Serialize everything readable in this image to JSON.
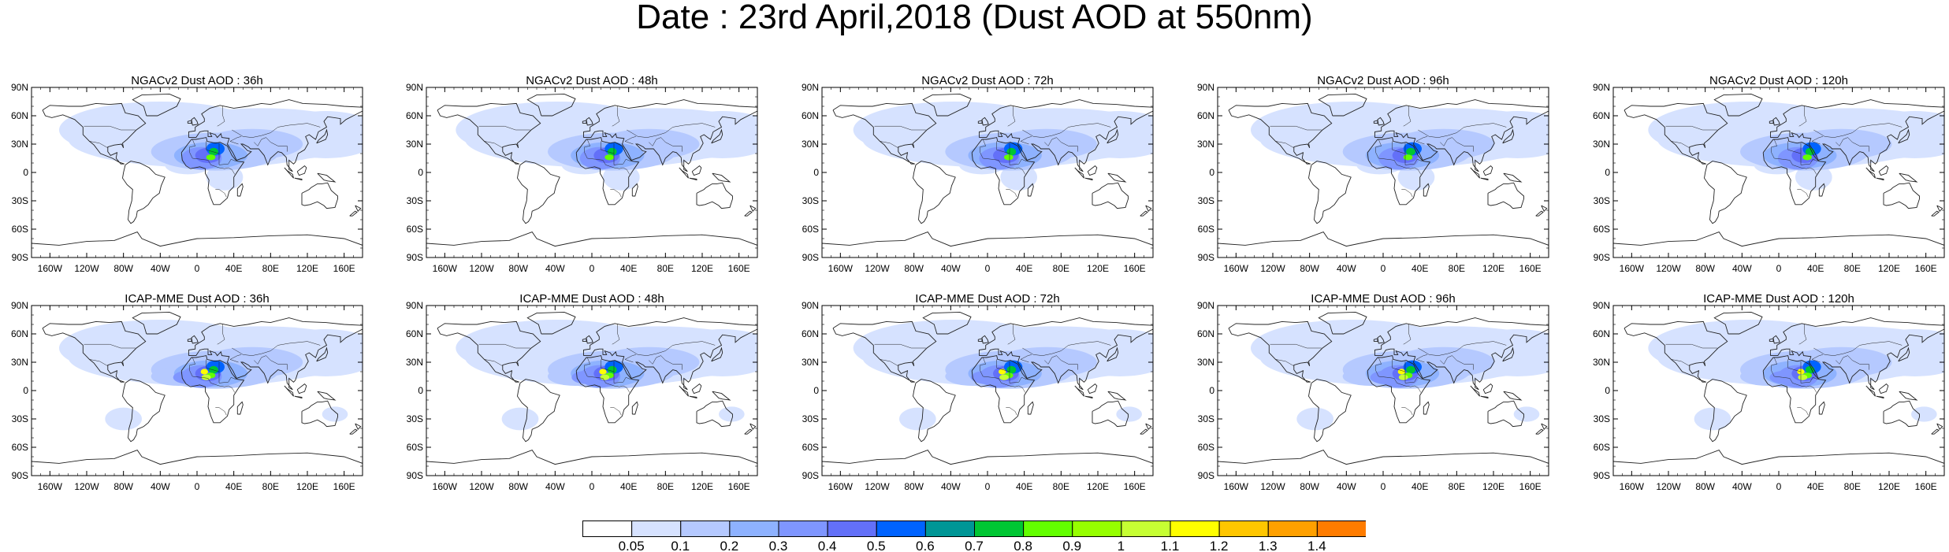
{
  "figure": {
    "title": "Date : 23rd April,2018 (Dust AOD at 550nm)"
  },
  "axes": {
    "lat_ticks": [
      "90N",
      "60N",
      "30N",
      "0",
      "30S",
      "60S",
      "90S"
    ],
    "lon_ticks": [
      "160W",
      "120W",
      "80W",
      "40W",
      "0",
      "40E",
      "80E",
      "120E",
      "160E"
    ]
  },
  "panels": [
    {
      "title": "NGACv2 Dust AOD : 36h",
      "model": "NGACv2",
      "lead": "36h"
    },
    {
      "title": "NGACv2 Dust AOD : 48h",
      "model": "NGACv2",
      "lead": "48h"
    },
    {
      "title": "NGACv2 Dust AOD : 72h",
      "model": "NGACv2",
      "lead": "72h"
    },
    {
      "title": "NGACv2 Dust AOD : 96h",
      "model": "NGACv2",
      "lead": "96h"
    },
    {
      "title": "NGACv2 Dust AOD : 120h",
      "model": "NGACv2",
      "lead": "120h"
    },
    {
      "title": "ICAP-MME Dust AOD : 36h",
      "model": "ICAP-MME",
      "lead": "36h"
    },
    {
      "title": "ICAP-MME Dust AOD : 48h",
      "model": "ICAP-MME",
      "lead": "48h"
    },
    {
      "title": "ICAP-MME Dust AOD : 72h",
      "model": "ICAP-MME",
      "lead": "72h"
    },
    {
      "title": "ICAP-MME Dust AOD : 96h",
      "model": "ICAP-MME",
      "lead": "96h"
    },
    {
      "title": "ICAP-MME Dust AOD : 120h",
      "model": "ICAP-MME",
      "lead": "120h"
    }
  ],
  "colorbar": {
    "labels": [
      "0.05",
      "0.1",
      "0.2",
      "0.3",
      "0.4",
      "0.5",
      "0.6",
      "0.7",
      "0.8",
      "0.9",
      "1",
      "1.1",
      "1.2",
      "1.3",
      "1.4"
    ],
    "colors": [
      "#ffffff",
      "#d6e2ff",
      "#b5c9ff",
      "#8eb2ff",
      "#7f96ff",
      "#6370f8",
      "#0063ff",
      "#009696",
      "#00c633",
      "#63ff00",
      "#96ff00",
      "#c6ff33",
      "#ffff00",
      "#ffc600",
      "#ffa000",
      "#ff7c00",
      "#ff1900"
    ]
  },
  "colors": {
    "coast": "#222222",
    "background": "#ffffff"
  }
}
